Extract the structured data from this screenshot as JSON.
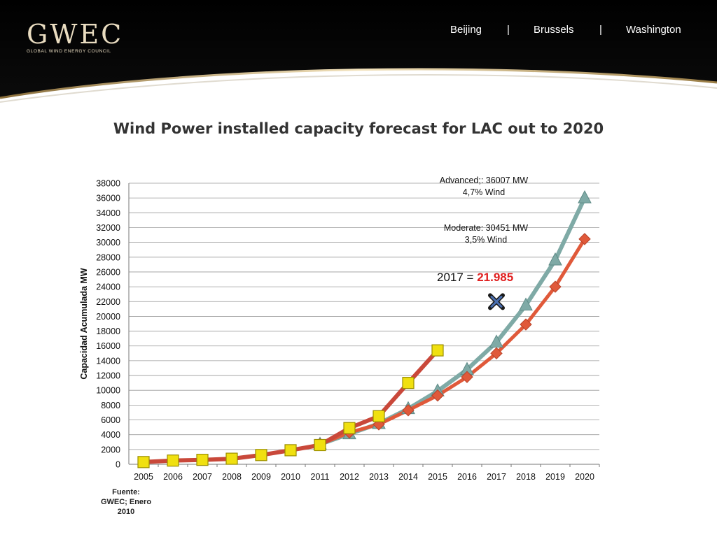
{
  "header": {
    "logo": "GWEC",
    "logo_subtitle": "GLOBAL WIND ENERGY COUNCIL",
    "cities": [
      "Beijing",
      "|",
      "Brussels",
      "|",
      "Washington"
    ]
  },
  "colors": {
    "header_bg": "#000000",
    "logo_gold": "#e9dcc0",
    "series_history": "#c9483a",
    "series_advanced": "#7faaa6",
    "series_moderate": "#e0593a",
    "history_marker": "#f0e010",
    "highlight_red": "#e02020"
  },
  "chart_data": {
    "type": "line",
    "title": "Wind Power installed capacity forecast  for LAC out to 2020",
    "ylabel": "Capacidad Acumulada MW",
    "xlabel": "",
    "ylim": [
      0,
      38000
    ],
    "ytick_step": 2000,
    "yticks": [
      "0",
      "2000",
      "4000",
      "6000",
      "8000",
      "10000",
      "12000",
      "14000",
      "16000",
      "18000",
      "20000",
      "22000",
      "24000",
      "26000",
      "28000",
      "30000",
      "32000",
      "34000",
      "36000",
      "38000"
    ],
    "x": [
      "2005",
      "2006",
      "2007",
      "2008",
      "2009",
      "2010",
      "2011",
      "2012",
      "2013",
      "2014",
      "2015",
      "2016",
      "2017",
      "2018",
      "2019",
      "2020"
    ],
    "grid": true,
    "series": [
      {
        "marker": "square",
        "values": [
          300,
          500,
          600,
          750,
          1250,
          1900,
          2600,
          4900,
          6500,
          11000,
          15400,
          null,
          null,
          null,
          null,
          null
        ]
      },
      {
        "marker": "triangle",
        "values": [
          null,
          null,
          null,
          null,
          null,
          null,
          2700,
          4100,
          5500,
          7500,
          9900,
          12800,
          16500,
          21500,
          27600,
          36007
        ]
      },
      {
        "marker": "diamond",
        "values": [
          null,
          null,
          null,
          null,
          null,
          null,
          2700,
          4300,
          5400,
          7300,
          9300,
          11800,
          15000,
          18900,
          24000,
          30451
        ]
      }
    ],
    "annotations": {
      "advanced_line1": "Advanced;: 36007 MW",
      "advanced_line2": "4,7% Wind",
      "moderate_line1": "Moderate: 30451 MW",
      "moderate_line2": "3,5% Wind",
      "highlight_prefix": "2017 = ",
      "highlight_value": "21.985",
      "highlight_point": {
        "x": "2017",
        "y": 21985
      }
    }
  },
  "footer": {
    "source_line1": "Fuente:",
    "source_line2": "GWEC; Enero",
    "source_line3": "2010"
  }
}
